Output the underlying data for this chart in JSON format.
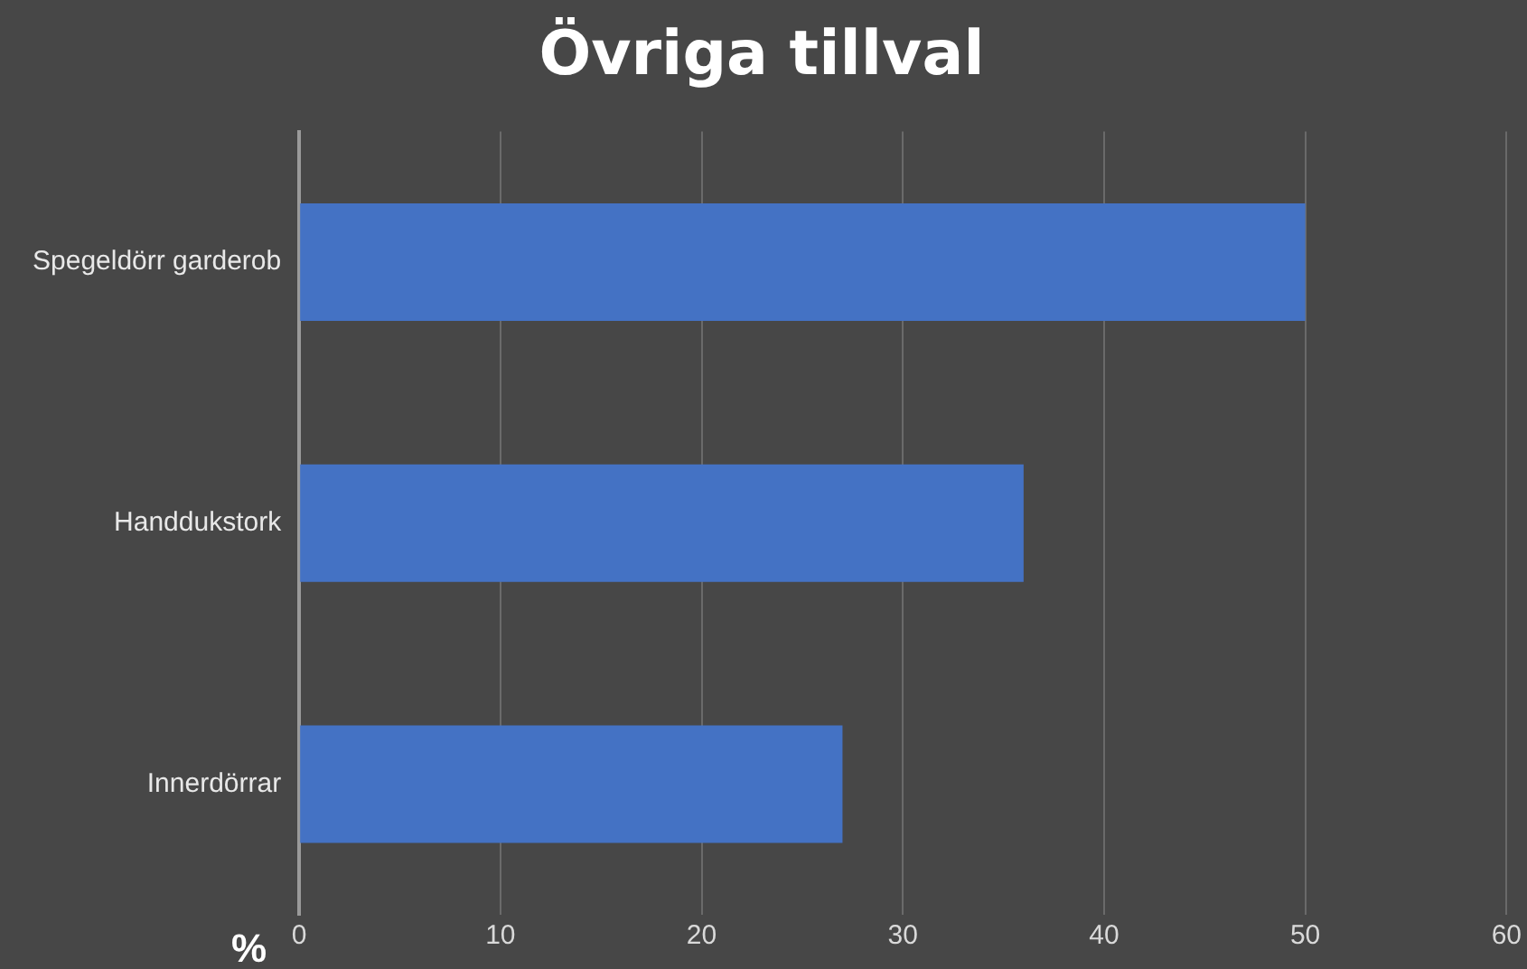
{
  "chart_data": {
    "type": "bar",
    "orientation": "horizontal",
    "title": "Övriga tillval",
    "xlabel": "%",
    "categories": [
      "Spegeldörr garderob",
      "Handdukstork",
      "Innerdörrar"
    ],
    "values": [
      50,
      36,
      27
    ],
    "color": "#4472c4",
    "xlim": [
      0,
      60
    ],
    "xticks": [
      0,
      10,
      20,
      30,
      40,
      50,
      60
    ],
    "grid": "x",
    "legend": false
  }
}
